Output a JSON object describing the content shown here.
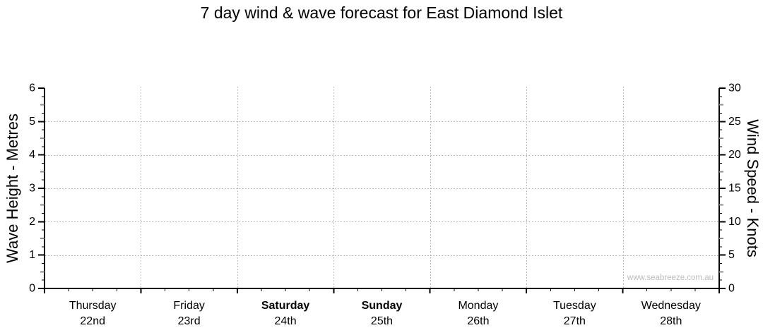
{
  "chart_data": {
    "type": "line",
    "title": "7 day wind & wave forecast for East Diamond Islet",
    "watermark": "www.seabreeze.com.au",
    "legend": "none",
    "grid": "dotted horizontal lines at wave heights 1-5; dotted vertical lines at day boundaries",
    "x_axis": {
      "categories": [
        {
          "day": "Thursday",
          "date": "22nd",
          "bold": false
        },
        {
          "day": "Friday",
          "date": "23rd",
          "bold": false
        },
        {
          "day": "Saturday",
          "date": "24th",
          "bold": true
        },
        {
          "day": "Sunday",
          "date": "25th",
          "bold": true
        },
        {
          "day": "Monday",
          "date": "26th",
          "bold": false
        },
        {
          "day": "Tuesday",
          "date": "27th",
          "bold": false
        },
        {
          "day": "Wednesday",
          "date": "28th",
          "bold": false
        }
      ],
      "minor_ticks_per_day": 4
    },
    "left_axis": {
      "label": "Wave Height - Metres",
      "min": 0,
      "max": 6,
      "major_tick_step": 1,
      "minor_tick_step": 0.25,
      "major_tick_labels": [
        "0",
        "1",
        "2",
        "3",
        "4",
        "5",
        "6"
      ],
      "gridline_values": [
        1,
        2,
        3,
        4,
        5
      ]
    },
    "right_axis": {
      "label": "Wind Speed - Knots",
      "min": 0,
      "max": 30,
      "major_tick_step": 5,
      "minor_tick_step": 1.25,
      "major_tick_labels": [
        "0",
        "5",
        "10",
        "15",
        "20",
        "25",
        "30"
      ]
    },
    "series": []
  },
  "colors": {
    "axis": "#000000",
    "grid": "#a9a9a9",
    "half_tick": "#8c8c8c",
    "day_label": "#000000",
    "date_label": "#999999",
    "watermark": "#bcbcbc"
  }
}
